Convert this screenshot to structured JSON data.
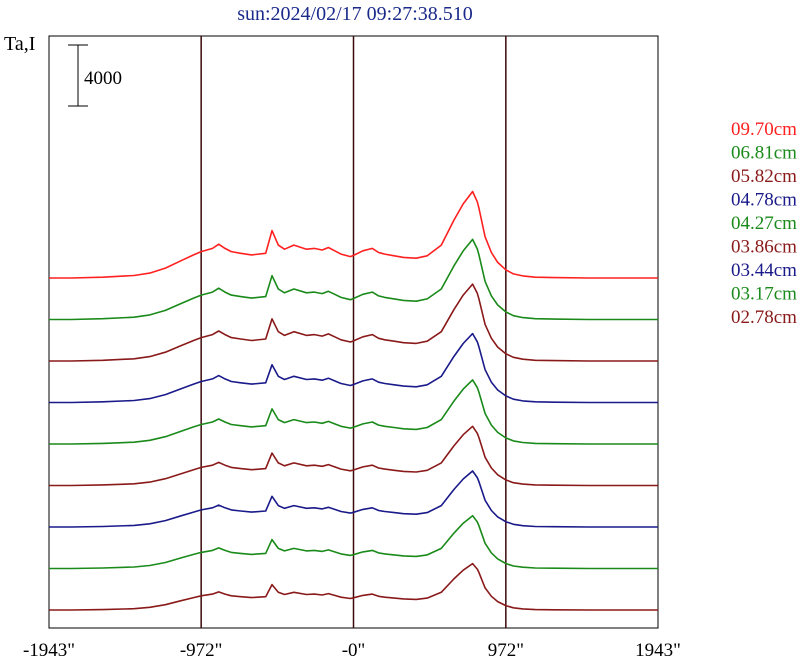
{
  "chart_data": {
    "type": "line",
    "title": "sun:2024/02/17 09:27:38.510",
    "ylabel": "Ta,I",
    "scale_bar_label": "4000",
    "scale_bar_value": 4000,
    "xlabel": "",
    "xlim": [
      -1943,
      1943
    ],
    "xticks": [
      {
        "value": -1943,
        "label": "-1943\""
      },
      {
        "value": -972,
        "label": "-972\""
      },
      {
        "value": 0,
        "label": "-0\""
      },
      {
        "value": 972,
        "label": "972\""
      },
      {
        "value": 1943,
        "label": "1943\""
      }
    ],
    "vertical_lines": [
      -972,
      0,
      972
    ],
    "x": [
      -1943,
      -1800,
      -1600,
      -1400,
      -1300,
      -1200,
      -1100,
      -1020,
      -972,
      -900,
      -860,
      -820,
      -780,
      -720,
      -650,
      -560,
      -520,
      -480,
      -440,
      -380,
      -300,
      -250,
      -200,
      -160,
      -120,
      -80,
      -20,
      0,
      60,
      120,
      160,
      200,
      260,
      320,
      400,
      470,
      560,
      640,
      700,
      760,
      790,
      800,
      840,
      880,
      920,
      972,
      1020,
      1080,
      1160,
      1280,
      1500,
      1943
    ],
    "profile": [
      0,
      0,
      0.02,
      0.06,
      0.12,
      0.24,
      0.42,
      0.56,
      0.64,
      0.72,
      0.82,
      0.72,
      0.64,
      0.6,
      0.56,
      0.6,
      1.15,
      0.8,
      0.7,
      0.8,
      0.7,
      0.72,
      0.68,
      0.74,
      0.66,
      0.58,
      0.52,
      0.55,
      0.66,
      0.72,
      0.62,
      0.58,
      0.54,
      0.5,
      0.48,
      0.54,
      0.8,
      1.4,
      1.8,
      2.1,
      1.85,
      1.7,
      1.0,
      0.62,
      0.38,
      0.2,
      0.1,
      0.05,
      0.02,
      0.01,
      0,
      0
    ],
    "baseline_ta": 0,
    "series_offset_step": 1,
    "series": [
      {
        "name": "09.70cm",
        "color": "#ff2020",
        "amplitude": 5400,
        "wing": 1
      },
      {
        "name": "06.81cm",
        "color": "#1a8a1a",
        "amplitude": 5000,
        "wing": 1
      },
      {
        "name": "05.82cm",
        "color": "#8a1a1a",
        "amplitude": 4800,
        "wing": 1
      },
      {
        "name": "04.78cm",
        "color": "#1a1a8a",
        "amplitude": 4300,
        "wing": 1
      },
      {
        "name": "04.27cm",
        "color": "#1a8a1a",
        "amplitude": 4000,
        "wing": 1
      },
      {
        "name": "03.86cm",
        "color": "#8a1a1a",
        "amplitude": 3700,
        "wing": 1
      },
      {
        "name": "03.44cm",
        "color": "#1a1a8a",
        "amplitude": 3500,
        "wing": 1
      },
      {
        "name": "03.17cm",
        "color": "#1a8a1a",
        "amplitude": 3300,
        "wing": 1
      },
      {
        "name": "02.78cm",
        "color": "#8a1a1a",
        "amplitude": 2900,
        "wing": 1
      }
    ],
    "grid": false,
    "legend": "right"
  }
}
